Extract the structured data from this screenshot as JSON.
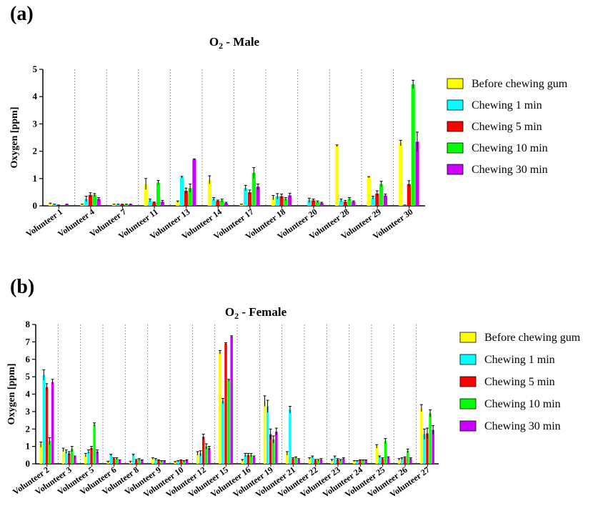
{
  "colors": {
    "Before chewing gum": "#ffff00",
    "Chewing 1 min": "#00ffff",
    "Chewing 5 min": "#ff0000",
    "Chewing 10 min": "#00ff00",
    "Chewing 30 min": "#cc00ff"
  },
  "chart_data": [
    {
      "panel_label": "a",
      "title": "O2 - Male",
      "title_base": "O",
      "title_sub": "2",
      "title_rest": " - Male",
      "type": "bar",
      "ylabel": "Oxygen [ppm]",
      "ylim": [
        0,
        5
      ],
      "yticks": [
        0,
        1,
        2,
        3,
        4,
        5
      ],
      "legend_position": "right",
      "categories": [
        "Volunteer 1",
        "Volunteer 4",
        "Volunteer 7",
        "Volunteer 11",
        "Volunteer 13",
        "Volunteer 14",
        "Volunteer 17",
        "Volunteer 18",
        "Volunteer 20",
        "Volunteer 28",
        "Volunteer 29",
        "Volunteer 30"
      ],
      "series": [
        {
          "name": "Before chewing gum",
          "values": [
            0.08,
            0.05,
            0.05,
            0.8,
            0.15,
            0.95,
            0.05,
            0.3,
            0.0,
            2.2,
            1.05,
            2.3
          ],
          "errors": [
            0.02,
            0.01,
            0.01,
            0.2,
            0.03,
            0.15,
            0.01,
            0.08,
            0.0,
            0.03,
            0.02,
            0.1
          ]
        },
        {
          "name": "Chewing 1 min",
          "values": [
            0.05,
            0.25,
            0.05,
            0.2,
            1.05,
            0.25,
            0.65,
            0.35,
            0.2,
            0.2,
            0.3,
            0.02
          ],
          "errors": [
            0.01,
            0.1,
            0.01,
            0.05,
            0.03,
            0.05,
            0.1,
            0.1,
            0.08,
            0.05,
            0.05,
            0.01
          ]
        },
        {
          "name": "Chewing 5 min",
          "values": [
            0.02,
            0.4,
            0.05,
            0.12,
            0.55,
            0.18,
            0.5,
            0.35,
            0.2,
            0.15,
            0.45,
            0.8
          ],
          "errors": [
            0.01,
            0.08,
            0.01,
            0.02,
            0.1,
            0.03,
            0.08,
            0.08,
            0.05,
            0.05,
            0.1,
            0.12
          ]
        },
        {
          "name": "Chewing 10 min",
          "values": [
            0.0,
            0.4,
            0.05,
            0.85,
            0.65,
            0.2,
            1.2,
            0.25,
            0.15,
            0.25,
            0.8,
            4.45
          ],
          "errors": [
            0.0,
            0.05,
            0.01,
            0.08,
            0.15,
            0.05,
            0.2,
            0.05,
            0.03,
            0.05,
            0.1,
            0.15
          ]
        },
        {
          "name": "Chewing 30 min",
          "values": [
            0.05,
            0.25,
            0.05,
            0.15,
            1.7,
            0.1,
            0.7,
            0.38,
            0.1,
            0.15,
            0.38,
            2.35
          ],
          "errors": [
            0.01,
            0.05,
            0.01,
            0.05,
            0.02,
            0.03,
            0.1,
            0.08,
            0.03,
            0.03,
            0.05,
            0.35
          ]
        }
      ]
    },
    {
      "panel_label": "b",
      "title": "O2 - Female",
      "title_base": "O",
      "title_sub": "2",
      "title_rest": " - Female",
      "type": "bar",
      "ylabel": "Oxygen [ppm]",
      "ylim": [
        0,
        8
      ],
      "yticks": [
        0,
        1,
        2,
        3,
        4,
        5,
        6,
        7,
        8
      ],
      "legend_position": "right",
      "categories": [
        "Volunteer 2",
        "Volunteer 3",
        "Volunteer 5",
        "Volunteer 6",
        "Volunteer 8",
        "Volunteer 9",
        "Volunteer 10",
        "Volunteer 12",
        "Volunteer 15",
        "Volunteer 16",
        "Volunteer 19",
        "Volunteer 21",
        "Volunteer 22",
        "Volunteer 23",
        "Volunteer 24",
        "Volunteer 25",
        "Volunteer 26",
        "Volunteer 27"
      ],
      "series": [
        {
          "name": "Before chewing gum",
          "values": [
            1.1,
            0.8,
            0.5,
            0.1,
            0.1,
            0.3,
            0.1,
            0.6,
            6.4,
            0.2,
            3.6,
            0.6,
            0.3,
            0.2,
            0.15,
            1.0,
            0.25,
            3.2
          ],
          "errors": [
            0.15,
            0.1,
            0.1,
            0.05,
            0.05,
            0.05,
            0.03,
            0.1,
            0.1,
            0.05,
            0.3,
            0.1,
            0.05,
            0.05,
            0.03,
            0.1,
            0.05,
            0.2
          ]
        },
        {
          "name": "Chewing 1 min",
          "values": [
            5.1,
            0.7,
            0.7,
            0.5,
            0.5,
            0.25,
            0.15,
            0.6,
            3.6,
            0.5,
            3.3,
            3.1,
            0.4,
            0.4,
            0.15,
            0.4,
            0.3,
            1.7
          ],
          "errors": [
            0.3,
            0.1,
            0.1,
            0.05,
            0.05,
            0.05,
            0.03,
            0.15,
            0.15,
            0.1,
            0.35,
            0.2,
            0.05,
            0.05,
            0.03,
            0.05,
            0.05,
            0.3
          ]
        },
        {
          "name": "Chewing 5 min",
          "values": [
            4.4,
            0.6,
            0.9,
            0.3,
            0.2,
            0.2,
            0.2,
            1.55,
            6.9,
            0.5,
            1.7,
            0.3,
            0.2,
            0.25,
            0.2,
            0.3,
            0.35,
            1.75
          ],
          "errors": [
            0.2,
            0.1,
            0.1,
            0.05,
            0.05,
            0.03,
            0.03,
            0.15,
            0.05,
            0.1,
            0.3,
            0.05,
            0.05,
            0.05,
            0.03,
            0.05,
            0.05,
            0.3
          ]
        },
        {
          "name": "Chewing 10 min",
          "values": [
            1.3,
            0.85,
            2.25,
            0.3,
            0.25,
            0.15,
            0.15,
            1.0,
            4.8,
            0.5,
            1.4,
            0.35,
            0.2,
            0.2,
            0.2,
            1.3,
            0.75,
            2.9
          ],
          "errors": [
            0.2,
            0.15,
            0.1,
            0.05,
            0.05,
            0.03,
            0.03,
            0.15,
            0.05,
            0.1,
            0.2,
            0.05,
            0.05,
            0.05,
            0.03,
            0.15,
            0.1,
            0.2
          ]
        },
        {
          "name": "Chewing 30 min",
          "values": [
            4.7,
            0.4,
            0.7,
            0.2,
            0.2,
            0.15,
            0.2,
            0.9,
            7.3,
            0.4,
            1.85,
            0.25,
            0.25,
            0.3,
            0.2,
            0.35,
            0.3,
            1.95
          ],
          "errors": [
            0.15,
            0.05,
            0.1,
            0.03,
            0.03,
            0.03,
            0.03,
            0.1,
            0.05,
            0.05,
            0.2,
            0.05,
            0.05,
            0.05,
            0.03,
            0.05,
            0.05,
            0.25
          ]
        }
      ]
    }
  ]
}
